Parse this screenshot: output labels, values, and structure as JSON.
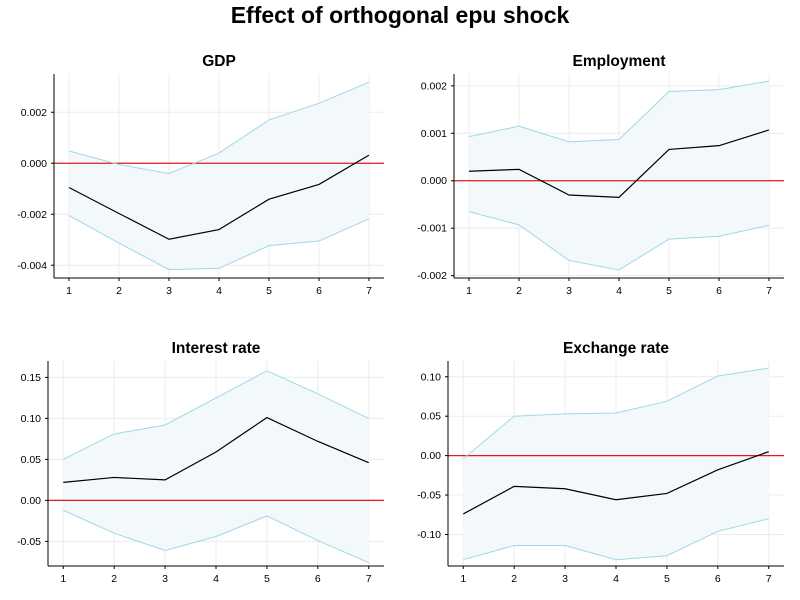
{
  "title": "Effect of orthogonal epu shock",
  "colors": {
    "irf_line": "#000000",
    "band_line": "#9fd8e6",
    "band_fill": "#f3f9fa",
    "zero_line": "#e31a1c",
    "grid": "#ececec",
    "axis": "#000000"
  },
  "chart_data": [
    {
      "type": "line",
      "title": "GDP",
      "x": [
        1,
        2,
        3,
        4,
        5,
        6,
        7
      ],
      "xticks": [
        "1",
        "2",
        "3",
        "4",
        "5",
        "6",
        "7"
      ],
      "yticks": [
        -0.004,
        -0.002,
        0.0,
        0.002
      ],
      "ytick_labels": [
        "-0.004",
        "-0.002",
        "0.000",
        "0.002"
      ],
      "ylim": [
        -0.0045,
        0.0035
      ],
      "xlim": [
        0.7,
        7.3
      ],
      "zero_line": 0,
      "grid": true,
      "series": [
        {
          "role": "irf",
          "values": [
            -0.00095,
            -0.00197,
            -0.00298,
            -0.0026,
            -0.00141,
            -0.00083,
            0.00032
          ]
        },
        {
          "role": "upper",
          "values": [
            0.00048,
            -5e-05,
            -0.0004,
            0.0004,
            0.0017,
            0.00235,
            0.00318
          ]
        },
        {
          "role": "lower",
          "values": [
            -0.00205,
            -0.00313,
            -0.00417,
            -0.00412,
            -0.00323,
            -0.00305,
            -0.00218
          ]
        }
      ]
    },
    {
      "type": "line",
      "title": "Employment",
      "x": [
        1,
        2,
        3,
        4,
        5,
        6,
        7
      ],
      "xticks": [
        "1",
        "2",
        "3",
        "4",
        "5",
        "6",
        "7"
      ],
      "yticks": [
        -0.002,
        -0.001,
        0.0,
        0.001,
        0.002
      ],
      "ytick_labels": [
        "-0.002",
        "-0.001",
        "0.000",
        "0.001",
        "0.002"
      ],
      "ylim": [
        -0.00205,
        0.00225
      ],
      "xlim": [
        0.7,
        7.3
      ],
      "zero_line": 0,
      "grid": true,
      "series": [
        {
          "role": "irf",
          "values": [
            0.0002,
            0.00024,
            -0.0003,
            -0.00035,
            0.00066,
            0.00074,
            0.00107
          ]
        },
        {
          "role": "upper",
          "values": [
            0.00093,
            0.00115,
            0.00082,
            0.00087,
            0.00188,
            0.00192,
            0.0021
          ]
        },
        {
          "role": "lower",
          "values": [
            -0.00065,
            -0.00093,
            -0.00168,
            -0.00188,
            -0.00123,
            -0.00117,
            -0.00094
          ]
        }
      ]
    },
    {
      "type": "line",
      "title": "Interest rate",
      "x": [
        1,
        2,
        3,
        4,
        5,
        6,
        7
      ],
      "xticks": [
        "1",
        "2",
        "3",
        "4",
        "5",
        "6",
        "7"
      ],
      "yticks": [
        -0.05,
        0.0,
        0.05,
        0.1,
        0.15
      ],
      "ytick_labels": [
        "-0.05",
        "0.00",
        "0.05",
        "0.10",
        "0.15"
      ],
      "ylim": [
        -0.08,
        0.17
      ],
      "xlim": [
        0.7,
        7.3
      ],
      "zero_line": 0,
      "grid": true,
      "series": [
        {
          "role": "irf",
          "values": [
            0.022,
            0.028,
            0.025,
            0.059,
            0.101,
            0.072,
            0.046
          ]
        },
        {
          "role": "upper",
          "values": [
            0.05,
            0.081,
            0.092,
            0.125,
            0.158,
            0.13,
            0.1
          ]
        },
        {
          "role": "lower",
          "values": [
            -0.012,
            -0.04,
            -0.061,
            -0.044,
            -0.019,
            -0.049,
            -0.076
          ]
        }
      ]
    },
    {
      "type": "line",
      "title": "Exchange rate",
      "x": [
        1,
        2,
        3,
        4,
        5,
        6,
        7
      ],
      "xticks": [
        "1",
        "2",
        "3",
        "4",
        "5",
        "6",
        "7"
      ],
      "yticks": [
        -0.1,
        -0.05,
        0.0,
        0.05,
        0.1
      ],
      "ytick_labels": [
        "-0.10",
        "-0.05",
        "0.00",
        "0.05",
        "0.10"
      ],
      "ylim": [
        -0.14,
        0.12
      ],
      "xlim": [
        0.7,
        7.3
      ],
      "zero_line": 0,
      "grid": true,
      "series": [
        {
          "role": "irf",
          "values": [
            -0.074,
            -0.039,
            -0.042,
            -0.056,
            -0.048,
            -0.018,
            0.005
          ]
        },
        {
          "role": "upper",
          "values": [
            -0.004,
            0.05,
            0.053,
            0.054,
            0.069,
            0.101,
            0.111
          ]
        },
        {
          "role": "lower",
          "values": [
            -0.132,
            -0.114,
            -0.114,
            -0.132,
            -0.127,
            -0.096,
            -0.08
          ]
        }
      ]
    }
  ]
}
